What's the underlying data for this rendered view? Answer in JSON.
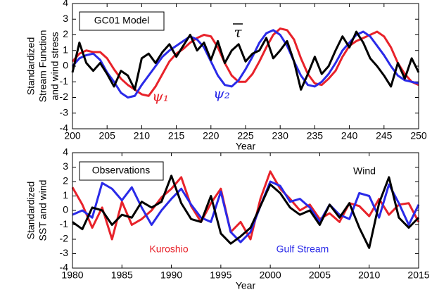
{
  "chart_data": [
    {
      "type": "line",
      "xlabel": "Year",
      "ylabel": [
        "Standardized",
        "Stream Function",
        "and wind stress"
      ],
      "xlim": [
        200,
        250
      ],
      "ylim": [
        -4,
        4
      ],
      "xticks": [
        200,
        205,
        210,
        215,
        220,
        225,
        230,
        235,
        240,
        245,
        250
      ],
      "yticks": [
        -4,
        -3,
        -2,
        -1,
        0,
        1,
        2,
        3,
        4
      ],
      "annotations": [
        "GC01 Model",
        "τ",
        "ψ₁",
        "ψ₂"
      ],
      "x": [
        200,
        201,
        202,
        203,
        204,
        205,
        206,
        207,
        208,
        209,
        210,
        211,
        212,
        213,
        214,
        215,
        216,
        217,
        218,
        219,
        220,
        221,
        222,
        223,
        224,
        225,
        226,
        227,
        228,
        229,
        230,
        231,
        232,
        233,
        234,
        235,
        236,
        237,
        238,
        239,
        240,
        241,
        242,
        243,
        244,
        245,
        246,
        247,
        248,
        249,
        250
      ],
      "series": [
        {
          "color": "#e8222a",
          "values": [
            0.3,
            0.8,
            1.0,
            0.9,
            0.9,
            0.5,
            -0.2,
            -0.8,
            -1.2,
            -1.5,
            -1.8,
            -1.9,
            -1.3,
            -0.5,
            0.3,
            0.8,
            1.1,
            1.5,
            1.8,
            2.0,
            1.9,
            1.2,
            0.2,
            -0.6,
            -1.0,
            -1.0,
            -0.5,
            0.3,
            1.2,
            2.0,
            2.4,
            2.3,
            1.7,
            0.5,
            -0.5,
            -1.1,
            -1.2,
            -0.8,
            -0.3,
            0.6,
            1.3,
            1.6,
            1.8,
            2.0,
            2.2,
            1.9,
            1.2,
            0.2,
            -0.5,
            -1.0,
            -1.2
          ]
        },
        {
          "color": "#2a2ae8",
          "values": [
            0,
            0.5,
            0.7,
            0.8,
            0.4,
            -0.4,
            -1.0,
            -1.7,
            -2.0,
            -1.9,
            -1.2,
            -0.6,
            0.0,
            0.6,
            1.0,
            1.3,
            1.6,
            1.9,
            1.7,
            1.2,
            0.3,
            -0.6,
            -1.2,
            -1.3,
            -0.9,
            -0.2,
            0.6,
            1.5,
            2.1,
            2.3,
            2.0,
            1.3,
            0.3,
            -0.6,
            -1.2,
            -1.3,
            -1.0,
            -0.5,
            0.2,
            1.0,
            1.5,
            2.0,
            2.2,
            1.9,
            1.3,
            0.7,
            0.0,
            -0.6,
            -0.9,
            -1.0,
            -1.1
          ]
        },
        {
          "color": "#000000",
          "values": [
            -0.4,
            1.5,
            0.2,
            -0.3,
            0.2,
            -0.5,
            -1.3,
            -0.3,
            -0.6,
            -1.5,
            0.5,
            0.8,
            0.2,
            0.9,
            1.4,
            0.6,
            1.3,
            2.0,
            1.0,
            1.5,
            0.4,
            1.6,
            0.2,
            1.0,
            1.4,
            0.3,
            0.8,
            1.0,
            1.8,
            0.5,
            1.0,
            1.6,
            0.3,
            -1.5,
            -0.5,
            0.6,
            -0.5,
            0.0,
            1.0,
            1.9,
            1.2,
            2.2,
            1.5,
            0.5,
            0.0,
            -0.6,
            -1.3,
            0.2,
            -0.8,
            0.5,
            -0.4
          ]
        }
      ]
    },
    {
      "type": "line",
      "xlabel": "Year",
      "ylabel": [
        "Standardized",
        "SST and wind"
      ],
      "xlim": [
        1980,
        2015
      ],
      "ylim": [
        -4,
        4
      ],
      "xticks": [
        1980,
        1985,
        1990,
        1995,
        2000,
        2005,
        2010,
        2015
      ],
      "yticks": [
        -4,
        -3,
        -2,
        -1,
        0,
        1,
        2,
        3,
        4
      ],
      "annotations": [
        "Observations",
        "Kuroshio",
        "Gulf Stream",
        "Wind"
      ],
      "x": [
        1980,
        1981,
        1982,
        1983,
        1984,
        1985,
        1986,
        1987,
        1988,
        1989,
        1990,
        1991,
        1992,
        1993,
        1994,
        1995,
        1996,
        1997,
        1998,
        1999,
        2000,
        2001,
        2002,
        2003,
        2004,
        2005,
        2006,
        2007,
        2008,
        2009,
        2010,
        2011,
        2012,
        2013,
        2014,
        2015
      ],
      "series": [
        {
          "color": "#e8222a",
          "values": [
            1.6,
            0.4,
            -1.2,
            0.2,
            -2.0,
            0.6,
            -1.0,
            -0.6,
            0.0,
            0.9,
            1.5,
            2.3,
            0.3,
            -0.8,
            0.5,
            1.5,
            -1.5,
            -0.8,
            -2.0,
            0.8,
            2.7,
            1.5,
            0.8,
            0.0,
            0.4,
            -0.6,
            -0.2,
            -0.8,
            0.5,
            0.3,
            -0.4,
            0.8,
            -0.3,
            0.4,
            0.5,
            -0.8
          ]
        },
        {
          "color": "#2a2ae8",
          "values": [
            -0.3,
            0.0,
            -0.5,
            1.9,
            1.5,
            0.7,
            1.6,
            0.2,
            -1.0,
            0.0,
            0.8,
            1.5,
            0.4,
            -0.5,
            -0.8,
            1.3,
            -1.5,
            -2.2,
            -1.5,
            0.3,
            2.0,
            1.7,
            0.6,
            0.8,
            0.2,
            -0.8,
            0.4,
            -0.3,
            -0.6,
            1.2,
            1.0,
            -0.5,
            1.8,
            0.5,
            -1.0,
            0.4
          ]
        },
        {
          "color": "#000000",
          "values": [
            -0.8,
            -1.3,
            0.2,
            0.0,
            -1.0,
            -0.3,
            -0.5,
            0.6,
            0.2,
            0.6,
            2.4,
            0.5,
            -0.6,
            -0.8,
            1.0,
            -1.6,
            -2.3,
            -1.8,
            -1.2,
            0.3,
            1.8,
            1.2,
            0.2,
            -0.3,
            0.0,
            -1.0,
            0.4,
            -0.5,
            0.5,
            -1.2,
            -2.6,
            0.5,
            2.3,
            -0.5,
            -1.2,
            -0.5
          ]
        }
      ]
    }
  ]
}
